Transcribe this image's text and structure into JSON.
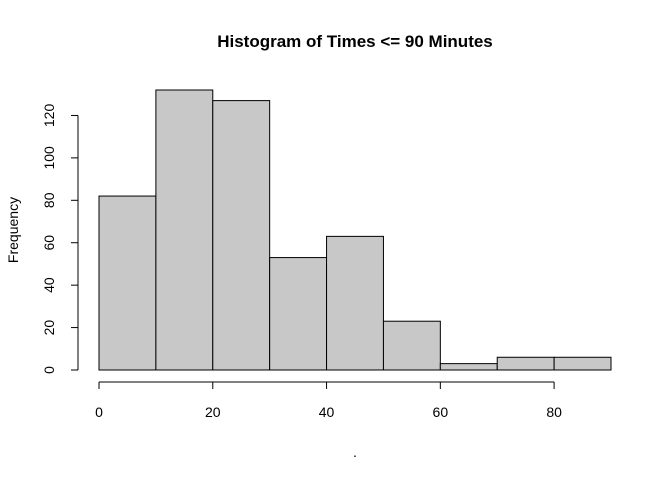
{
  "chart_data": {
    "type": "bar",
    "title": "Histogram of Times <= 90 Minutes",
    "xlabel": ".",
    "ylabel": "Frequency",
    "bins": [
      {
        "start": 0,
        "end": 10,
        "count": 82
      },
      {
        "start": 10,
        "end": 20,
        "count": 132
      },
      {
        "start": 20,
        "end": 30,
        "count": 127
      },
      {
        "start": 30,
        "end": 40,
        "count": 53
      },
      {
        "start": 40,
        "end": 50,
        "count": 63
      },
      {
        "start": 50,
        "end": 60,
        "count": 23
      },
      {
        "start": 60,
        "end": 70,
        "count": 3
      },
      {
        "start": 70,
        "end": 80,
        "count": 6
      },
      {
        "start": 80,
        "end": 90,
        "count": 6
      }
    ],
    "x_ticks": [
      0,
      20,
      40,
      60,
      80
    ],
    "y_ticks": [
      0,
      20,
      40,
      60,
      80,
      100,
      120
    ],
    "xlim": [
      0,
      90
    ],
    "ylim": [
      0,
      132
    ],
    "grid": false
  }
}
